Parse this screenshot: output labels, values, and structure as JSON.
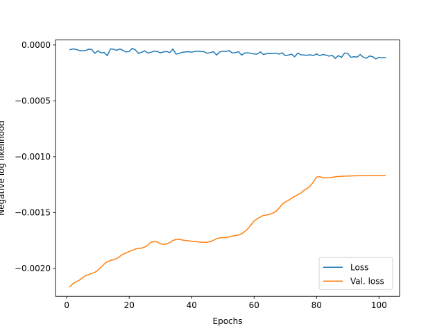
{
  "chart_data": {
    "type": "line",
    "title": "",
    "xlabel": "Epochs",
    "ylabel": "Negative log likelihood",
    "xlim": [
      -3.6,
      106.6
    ],
    "ylim": [
      -0.00225,
      4.5e-05
    ],
    "xticks": [
      0,
      20,
      40,
      60,
      80,
      100
    ],
    "xtick_labels": [
      "0",
      "20",
      "40",
      "60",
      "80",
      "100"
    ],
    "yticks": [
      0.0,
      -0.0005,
      -0.001,
      -0.0015,
      -0.002
    ],
    "ytick_labels": [
      "0.0000",
      "−0.0005",
      "−0.0010",
      "−0.0015",
      "−0.0020"
    ],
    "grid": false,
    "legend": {
      "loc": "lower-right"
    },
    "series": [
      {
        "name": "Loss",
        "color": "#1f77b4",
        "x": [
          1,
          2,
          3,
          4,
          5,
          6,
          7,
          8,
          9,
          10,
          11,
          12,
          13,
          14,
          15,
          16,
          17,
          18,
          19,
          20,
          21,
          22,
          23,
          24,
          25,
          26,
          27,
          28,
          29,
          30,
          31,
          32,
          33,
          34,
          35,
          36,
          37,
          38,
          39,
          40,
          41,
          42,
          43,
          44,
          45,
          46,
          47,
          48,
          49,
          50,
          51,
          52,
          53,
          54,
          55,
          56,
          57,
          58,
          59,
          60,
          61,
          62,
          63,
          64,
          65,
          66,
          67,
          68,
          69,
          70,
          71,
          72,
          73,
          74,
          75,
          76,
          77,
          78,
          79,
          80,
          81,
          82,
          83,
          84,
          85,
          86,
          87,
          88,
          89,
          90,
          91,
          92,
          93,
          94,
          95,
          96,
          97,
          98,
          99,
          100,
          101,
          102
        ],
        "y": [
          -4.2e-05,
          -3.5e-05,
          -4e-05,
          -4.8e-05,
          -5.2e-05,
          -5e-05,
          -3.8e-05,
          -4e-05,
          -7.5e-05,
          -5.2e-05,
          -7e-05,
          -6.8e-05,
          -9.5e-05,
          -3.5e-05,
          -3.8e-05,
          -4.8e-05,
          -3.5e-05,
          -4.8e-05,
          -6.2e-05,
          -5.8e-05,
          -3e-05,
          -4.5e-05,
          -7.5e-05,
          -6.5e-05,
          -5.2e-05,
          -7.2e-05,
          -6.5e-05,
          -5.5e-05,
          -5.8e-05,
          -7e-05,
          -6.2e-05,
          -5.8e-05,
          -6.8e-05,
          -3.5e-05,
          -8.2e-05,
          -7.5e-05,
          -6.5e-05,
          -6.2e-05,
          -6e-05,
          -6.5e-05,
          -5.8e-05,
          -5.5e-05,
          -5.8e-05,
          -6e-05,
          -7.5e-05,
          -6.8e-05,
          -6e-05,
          -9e-05,
          -6.2e-05,
          -5.5e-05,
          -5.8e-05,
          -5e-05,
          -7.2e-05,
          -6.8e-05,
          -6e-05,
          -9e-05,
          -7.2e-05,
          -7e-05,
          -7.5e-05,
          -8e-05,
          -8.2e-05,
          -6.2e-05,
          -8.5e-05,
          -7.8e-05,
          -7.5e-05,
          -7.8e-05,
          -7.2e-05,
          -8.2e-05,
          -7e-05,
          -9.5e-05,
          -9e-05,
          -8.2e-05,
          -0.000105,
          -7.2e-05,
          -8.8e-05,
          -9e-05,
          -9.2e-05,
          -8.8e-05,
          -9.5e-05,
          -8e-05,
          -9.5e-05,
          -8.5e-05,
          -9e-05,
          -0.0001,
          -9.2e-05,
          -0.00012,
          -9.5e-05,
          -0.00011,
          -7.2e-05,
          -7.5e-05,
          -0.00011,
          -0.000105,
          -0.000108,
          -8.5e-05,
          -0.00011,
          -0.000118,
          -9.8e-05,
          -0.000105,
          -0.000125,
          -0.00011,
          -0.000115,
          -0.000112
        ]
      },
      {
        "name": "Val. loss",
        "color": "#ff7f0e",
        "x": [
          1,
          2,
          3,
          4,
          5,
          6,
          7,
          8,
          9,
          10,
          11,
          12,
          13,
          14,
          15,
          16,
          17,
          18,
          19,
          20,
          21,
          22,
          23,
          24,
          25,
          26,
          27,
          28,
          29,
          30,
          31,
          32,
          33,
          34,
          35,
          36,
          37,
          38,
          39,
          40,
          41,
          42,
          43,
          44,
          45,
          46,
          47,
          48,
          49,
          50,
          51,
          52,
          53,
          54,
          55,
          56,
          57,
          58,
          59,
          60,
          61,
          62,
          63,
          64,
          65,
          66,
          67,
          68,
          69,
          70,
          71,
          72,
          73,
          74,
          75,
          76,
          77,
          78,
          79,
          80,
          81,
          82,
          83,
          84,
          85,
          86,
          87,
          88,
          89,
          90,
          91,
          92,
          93,
          94,
          95,
          96,
          97,
          98,
          99,
          100,
          101,
          102
        ],
        "y": [
          -0.002165,
          -0.002135,
          -0.00212,
          -0.002105,
          -0.002085,
          -0.002065,
          -0.002055,
          -0.002045,
          -0.002035,
          -0.002015,
          -0.00199,
          -0.00196,
          -0.00194,
          -0.001928,
          -0.001922,
          -0.001912,
          -0.001892,
          -0.001873,
          -0.001862,
          -0.001848,
          -0.001838,
          -0.001826,
          -0.00182,
          -0.001818,
          -0.001808,
          -0.00179,
          -0.001765,
          -0.00176,
          -0.001762,
          -0.00178,
          -0.001785,
          -0.00178,
          -0.001768,
          -0.00175,
          -0.00174,
          -0.001738,
          -0.001745,
          -0.00175,
          -0.001752,
          -0.001758,
          -0.00176,
          -0.001762,
          -0.001765,
          -0.001766,
          -0.001766,
          -0.00176,
          -0.001748,
          -0.001733,
          -0.001726,
          -0.001725,
          -0.001724,
          -0.001718,
          -0.00171,
          -0.001706,
          -0.0017,
          -0.00169,
          -0.00167,
          -0.001645,
          -0.00161,
          -0.001575,
          -0.001556,
          -0.00154,
          -0.001525,
          -0.001522,
          -0.001515,
          -0.001505,
          -0.00149,
          -0.00146,
          -0.001425,
          -0.001405,
          -0.00139,
          -0.001372,
          -0.001355,
          -0.00134,
          -0.001325,
          -0.0013,
          -0.001285,
          -0.001262,
          -0.001225,
          -0.001182,
          -0.001178,
          -0.001188,
          -0.00119,
          -0.001188,
          -0.001184,
          -0.00118,
          -0.001177,
          -0.001175,
          -0.001174,
          -0.001173,
          -0.001172,
          -0.001171,
          -0.001171,
          -0.00117,
          -0.00117,
          -0.00117,
          -0.00117,
          -0.001169,
          -0.001169,
          -0.001169,
          -0.001168,
          -0.001168
        ]
      }
    ]
  }
}
